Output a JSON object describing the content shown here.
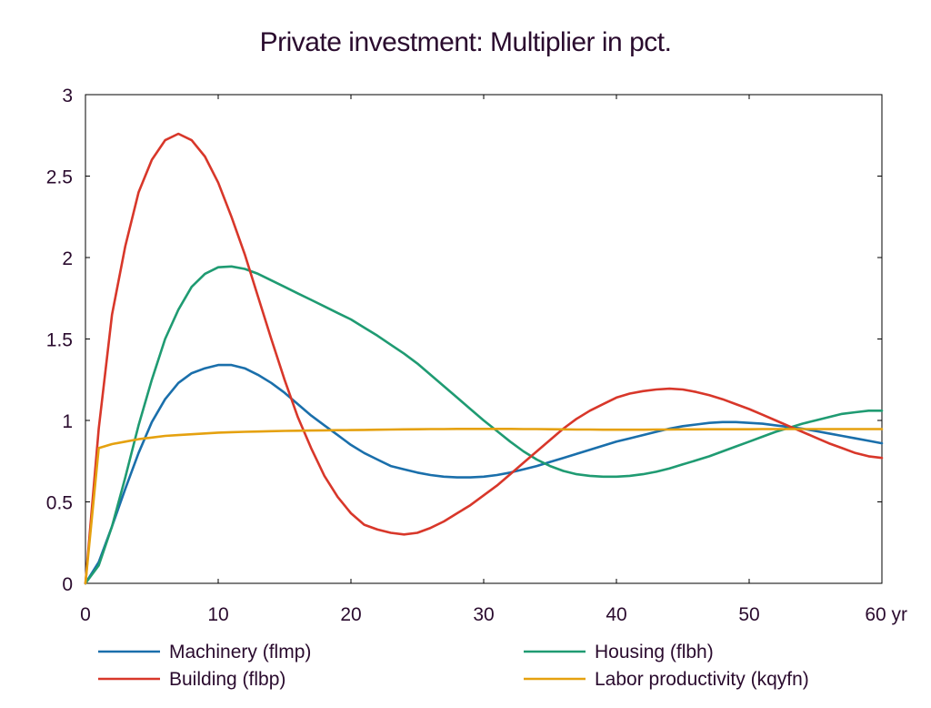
{
  "chart_data": {
    "type": "line",
    "title": "Private investment: Multiplier in pct.",
    "xlabel": "",
    "ylabel": "",
    "x_ticks": [
      "0",
      "10",
      "20",
      "30",
      "40",
      "50",
      "60 yr"
    ],
    "y_ticks": [
      "0",
      "0.5",
      "1",
      "1.5",
      "2",
      "2.5",
      "3"
    ],
    "xlim": [
      0,
      60
    ],
    "ylim": [
      0,
      3
    ],
    "grid": false,
    "legend_position": "bottom",
    "x": [
      0,
      1,
      2,
      3,
      4,
      5,
      6,
      7,
      8,
      9,
      10,
      11,
      12,
      13,
      14,
      15,
      16,
      17,
      18,
      19,
      20,
      21,
      22,
      23,
      24,
      25,
      26,
      27,
      28,
      29,
      30,
      31,
      32,
      33,
      34,
      35,
      36,
      37,
      38,
      39,
      40,
      41,
      42,
      43,
      44,
      45,
      46,
      47,
      48,
      49,
      50,
      51,
      52,
      53,
      54,
      55,
      56,
      57,
      58,
      59,
      60
    ],
    "series": [
      {
        "name": "Machinery (flmp)",
        "color": "#1a6fab",
        "values": [
          0,
          0.13,
          0.35,
          0.58,
          0.8,
          0.99,
          1.13,
          1.23,
          1.29,
          1.32,
          1.34,
          1.34,
          1.32,
          1.28,
          1.23,
          1.17,
          1.1,
          1.03,
          0.97,
          0.91,
          0.85,
          0.8,
          0.76,
          0.72,
          0.7,
          0.68,
          0.665,
          0.655,
          0.65,
          0.65,
          0.655,
          0.665,
          0.68,
          0.7,
          0.72,
          0.745,
          0.77,
          0.795,
          0.82,
          0.845,
          0.87,
          0.89,
          0.91,
          0.93,
          0.95,
          0.965,
          0.975,
          0.985,
          0.99,
          0.99,
          0.985,
          0.98,
          0.97,
          0.96,
          0.95,
          0.935,
          0.92,
          0.905,
          0.89,
          0.875,
          0.86
        ]
      },
      {
        "name": "Building (flbp)",
        "color": "#d8372a",
        "values": [
          0,
          0.95,
          1.65,
          2.07,
          2.4,
          2.6,
          2.72,
          2.76,
          2.72,
          2.62,
          2.46,
          2.25,
          2.02,
          1.76,
          1.5,
          1.25,
          1.02,
          0.83,
          0.66,
          0.53,
          0.43,
          0.36,
          0.33,
          0.31,
          0.3,
          0.31,
          0.34,
          0.38,
          0.43,
          0.48,
          0.54,
          0.6,
          0.67,
          0.74,
          0.81,
          0.88,
          0.95,
          1.01,
          1.06,
          1.1,
          1.14,
          1.165,
          1.18,
          1.19,
          1.195,
          1.19,
          1.175,
          1.155,
          1.13,
          1.1,
          1.07,
          1.035,
          1.0,
          0.965,
          0.93,
          0.895,
          0.86,
          0.83,
          0.8,
          0.78,
          0.77
        ]
      },
      {
        "name": "Housing (flbh)",
        "color": "#1f9b72",
        "values": [
          0,
          0.11,
          0.35,
          0.65,
          0.97,
          1.25,
          1.5,
          1.68,
          1.82,
          1.9,
          1.94,
          1.945,
          1.93,
          1.9,
          1.86,
          1.82,
          1.78,
          1.74,
          1.7,
          1.66,
          1.62,
          1.57,
          1.52,
          1.465,
          1.41,
          1.35,
          1.28,
          1.21,
          1.14,
          1.07,
          1.0,
          0.935,
          0.87,
          0.81,
          0.76,
          0.72,
          0.69,
          0.67,
          0.66,
          0.655,
          0.655,
          0.66,
          0.67,
          0.685,
          0.705,
          0.73,
          0.755,
          0.78,
          0.81,
          0.84,
          0.87,
          0.9,
          0.93,
          0.955,
          0.98,
          1.0,
          1.02,
          1.04,
          1.05,
          1.06,
          1.06
        ]
      },
      {
        "name": "Labor productivity (kqyfn)",
        "color": "#e5a10f",
        "values": [
          0,
          0.83,
          0.855,
          0.87,
          0.885,
          0.895,
          0.905,
          0.91,
          0.915,
          0.92,
          0.925,
          0.928,
          0.93,
          0.932,
          0.934,
          0.936,
          0.937,
          0.938,
          0.939,
          0.94,
          0.941,
          0.942,
          0.943,
          0.944,
          0.945,
          0.946,
          0.947,
          0.947,
          0.948,
          0.948,
          0.948,
          0.948,
          0.948,
          0.947,
          0.947,
          0.946,
          0.945,
          0.944,
          0.944,
          0.943,
          0.943,
          0.943,
          0.943,
          0.944,
          0.944,
          0.945,
          0.945,
          0.946,
          0.946,
          0.946,
          0.946,
          0.947,
          0.947,
          0.947,
          0.947,
          0.947,
          0.947,
          0.947,
          0.947,
          0.947,
          0.947
        ]
      }
    ]
  }
}
